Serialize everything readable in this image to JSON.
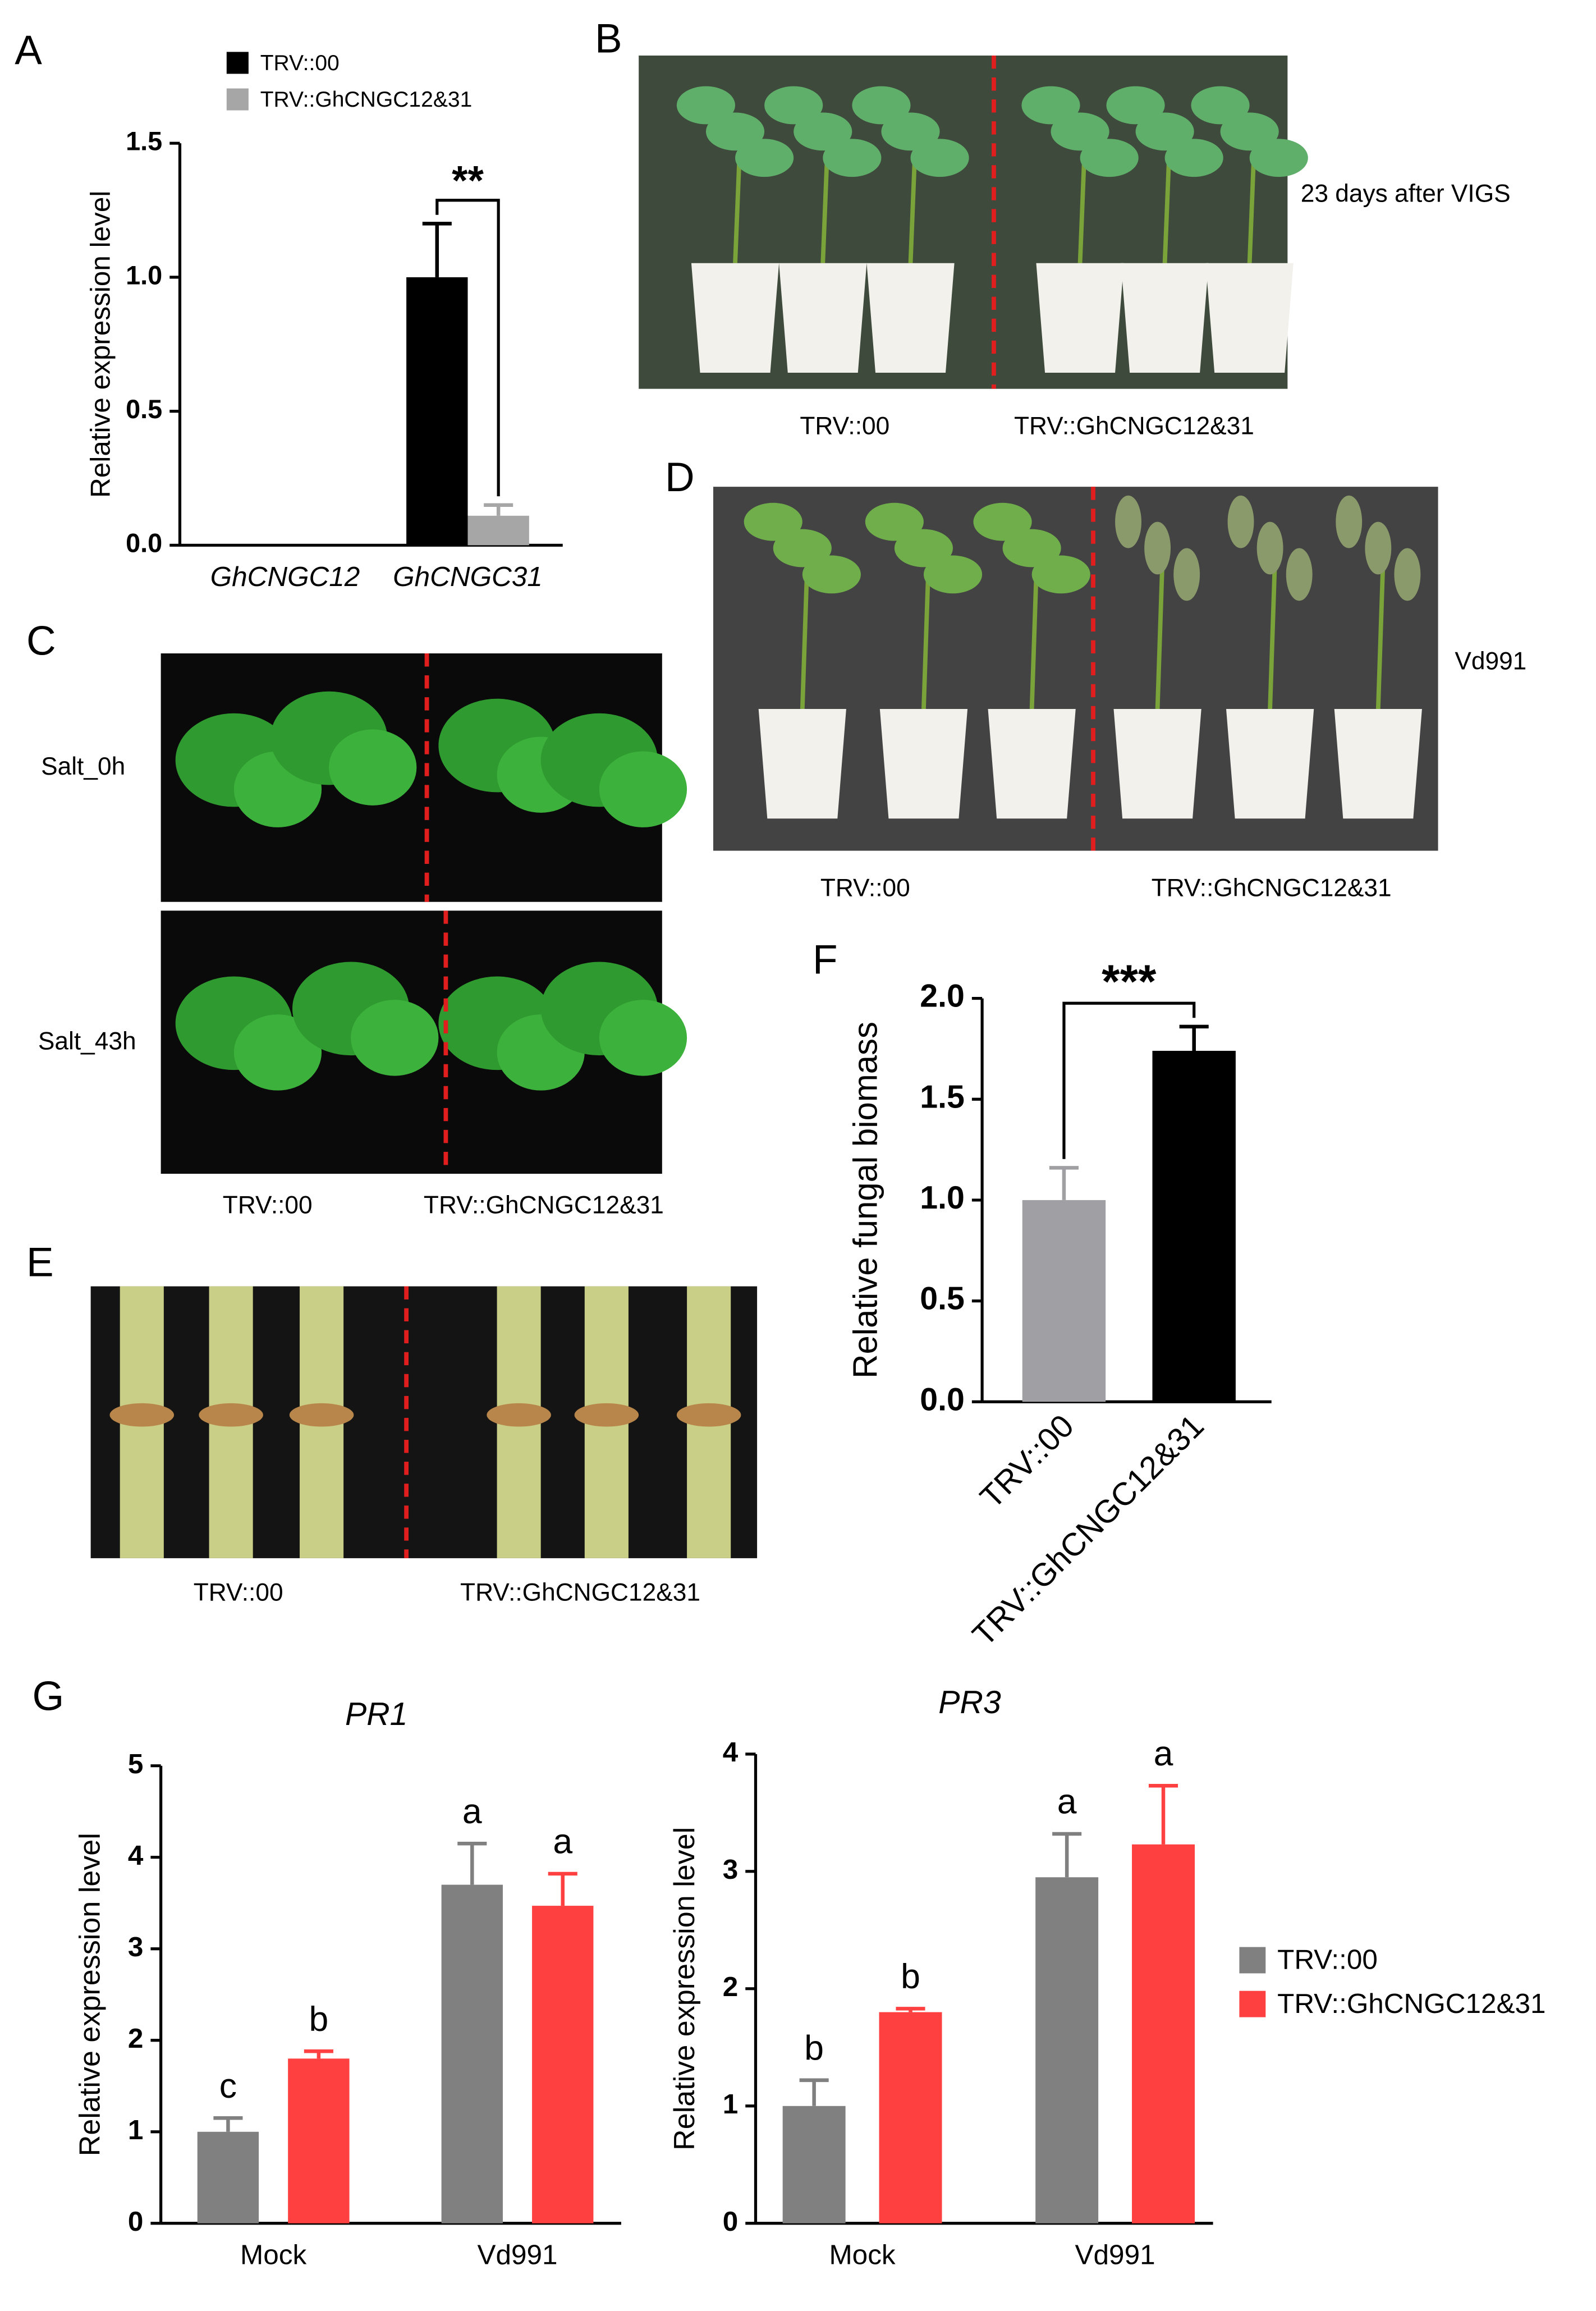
{
  "panel_labels": [
    "A",
    "B",
    "C",
    "D",
    "E",
    "F",
    "G"
  ],
  "photos": {
    "B": {
      "side_label": "23 days after VIGS",
      "captions": [
        "TRV::00",
        "TRV::GhCNGC12&31"
      ]
    },
    "C": {
      "row_labels": [
        "Salt_0h",
        "Salt_43h"
      ],
      "captions": [
        "TRV::00",
        "TRV::GhCNGC12&31"
      ]
    },
    "D": {
      "side_label": "Vd991",
      "captions": [
        "TRV::00",
        "TRV::GhCNGC12&31"
      ]
    },
    "E": {
      "captions": [
        "TRV::00",
        "TRV::GhCNGC12&31"
      ]
    }
  },
  "chart_data": [
    {
      "type": "bar",
      "y_label": "Relative expression level",
      "categories": [
        "GhCNGC12",
        "GhCNGC31"
      ],
      "series": [
        {
          "name": "TRV::00",
          "color": "#000000",
          "values": [
            null,
            1.0
          ],
          "errors": [
            null,
            0.2
          ]
        },
        {
          "name": "TRV::GhCNGC12&31",
          "color": "#a6a6a6",
          "values": [
            null,
            0.11
          ],
          "errors": [
            null,
            0.04
          ]
        }
      ],
      "significance": "**",
      "legend": "top",
      "ylim": [
        0,
        1.5
      ],
      "yticks": [
        {
          "value": 0,
          "label": "0.0"
        },
        {
          "value": 0.5,
          "label": "0.5"
        },
        {
          "value": 1,
          "label": "1.0"
        },
        {
          "value": 1.5,
          "label": "1.5"
        }
      ]
    },
    {
      "type": "bar",
      "y_label": "Relative fungal biomass",
      "categories": [
        "TRV::00",
        "TRV::GhCNGC12&31"
      ],
      "values": [
        1.0,
        1.74
      ],
      "errors": [
        0.16,
        0.12
      ],
      "colors": [
        "#a0a0a4",
        "#000000"
      ],
      "significance": "***",
      "ylim": [
        0,
        2.0
      ],
      "yticks": [
        {
          "value": 0,
          "label": "0.0"
        },
        {
          "value": 0.5,
          "label": "0.5"
        },
        {
          "value": 1,
          "label": "1.0"
        },
        {
          "value": 1.5,
          "label": "1.5"
        },
        {
          "value": 2,
          "label": "2.0"
        }
      ]
    },
    {
      "type": "bar",
      "title": "PR1",
      "y_label": "Relative expression level",
      "categories": [
        "Mock",
        "Vd991"
      ],
      "series": [
        {
          "name": "TRV::00",
          "color": "#808080",
          "values": [
            1.0,
            3.7
          ],
          "errors": [
            0.15,
            0.45
          ],
          "letters": [
            "c",
            "a"
          ]
        },
        {
          "name": "TRV::GhCNGC12&31",
          "color": "#ff4040",
          "values": [
            1.8,
            3.47
          ],
          "errors": [
            0.08,
            0.35
          ],
          "letters": [
            "b",
            "a"
          ]
        }
      ],
      "legend": "right",
      "ylim": [
        0,
        5
      ],
      "yticks": [
        0,
        1,
        2,
        3,
        4,
        5
      ]
    },
    {
      "type": "bar",
      "title": "PR3",
      "y_label": "Relative expression level",
      "categories": [
        "Mock",
        "Vd991"
      ],
      "series": [
        {
          "color": "#808080",
          "values": [
            1.0,
            2.95
          ],
          "errors": [
            0.22,
            0.37
          ],
          "letters": [
            "b",
            "a"
          ]
        },
        {
          "color": "#ff4040",
          "values": [
            1.8,
            3.23
          ],
          "errors": [
            0.03,
            0.5
          ],
          "letters": [
            "b",
            "a"
          ]
        }
      ],
      "ylim": [
        0,
        4
      ],
      "yticks": [
        0,
        1,
        2,
        3,
        4
      ]
    }
  ]
}
